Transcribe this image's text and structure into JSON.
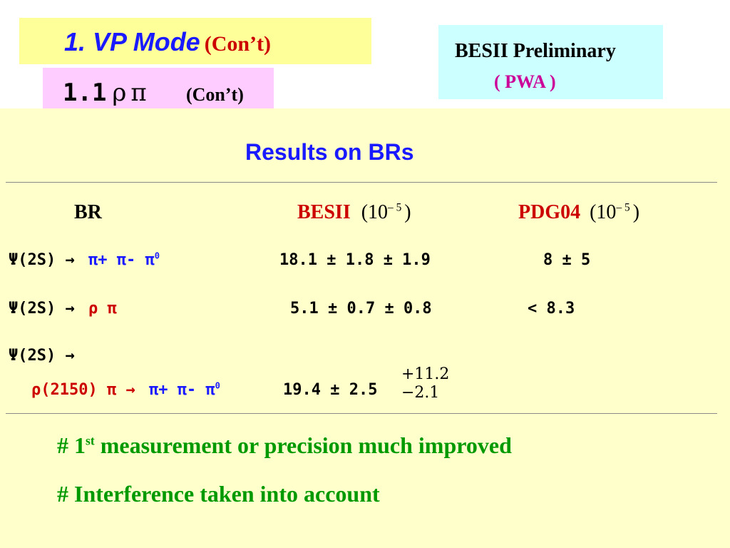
{
  "header": {
    "title": "1. VP Mode",
    "title_cont": "(Con’t)",
    "subtitle": "1.1",
    "subtitle_greek": "ρπ",
    "subtitle_cont": "(Con’t)"
  },
  "preliminary": {
    "line1": "BESII Preliminary",
    "line2": "( PWA )"
  },
  "results_title": "Results on BRs",
  "table": {
    "columns": {
      "br": "BR",
      "besii": "BESII",
      "besii_unit_open": "(10",
      "besii_unit_exp": "– 5",
      "besii_unit_close": ")",
      "pdg": "PDG04",
      "pdg_unit_open": "(10",
      "pdg_unit_exp": "– 5",
      "pdg_unit_close": ")"
    },
    "rows": [
      {
        "decay_parent": "Ψ(2S) →",
        "decay_products": "π+ π- π",
        "decay_sup": "0",
        "besii": "18.1 ± 1.8 ± 1.9",
        "pdg": "8 ± 5"
      },
      {
        "decay_parent": "Ψ(2S) →",
        "decay_products": "ρ π",
        "besii": "5.1 ± 0.7 ± 0.8",
        "pdg": "< 8.3"
      },
      {
        "decay_parent": "Ψ(2S) →",
        "decay_sub_red": "ρ(2150) π →",
        "decay_sub_blue": "π+ π- π",
        "decay_sup": "0",
        "besii": "19.4 ± 2.5",
        "err_plus": "+11.2",
        "err_minus": "−2.1"
      }
    ]
  },
  "notes": {
    "note1_pre": "# 1",
    "note1_sup": "st",
    "note1_post": " measurement  or precision much improved",
    "note2": "# Interference taken into account"
  }
}
